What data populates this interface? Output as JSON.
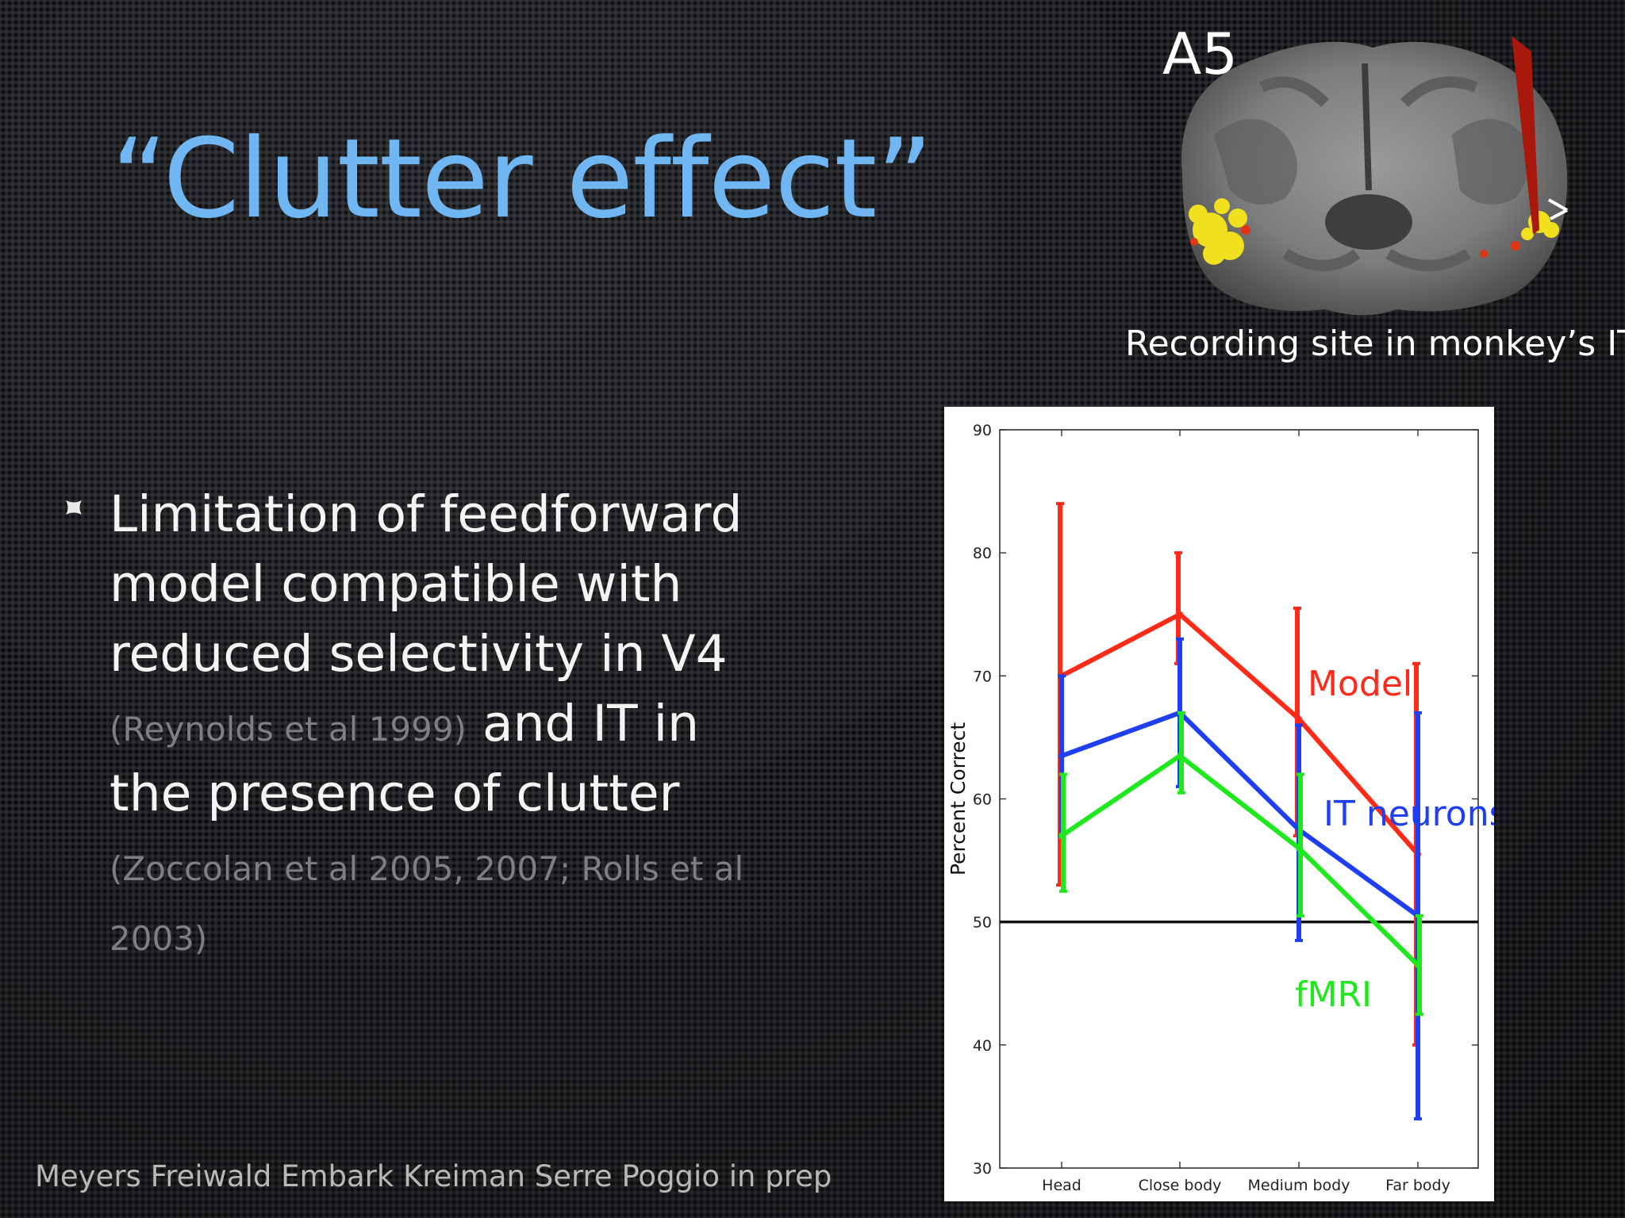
{
  "slide": {
    "title": "“Clutter effect”",
    "bullet": {
      "line1": "Limitation of feedforward model compatible with reduced selectivity in V4",
      "cite1": "(Reynolds et al 1999)",
      "line2": " and IT in the presence of clutter",
      "cite2": "(Zoccolan et al 2005, 2007; Rolls et al 2003)"
    },
    "footer": "Meyers Freiwald Embark Kreiman Serre Poggio in prep",
    "brain": {
      "label": "A5",
      "caption": "Recording site in monkey’s IT"
    },
    "colors": {
      "title": "#6fb6f2",
      "model": "#ff2a17",
      "it": "#1f3ff5",
      "fmri": "#1fe81f"
    }
  },
  "chart_data": {
    "type": "line",
    "categories": [
      "Head",
      "Close body",
      "Medium body",
      "Far body"
    ],
    "ylabel": "Percent Correct",
    "xlabel": "",
    "ylim": [
      30,
      90
    ],
    "yticks": [
      30,
      40,
      50,
      60,
      70,
      80,
      90
    ],
    "reference_line": 50,
    "series": [
      {
        "name": "Model",
        "color": "#ff2a17",
        "values": [
          70,
          75,
          66.5,
          55.5
        ],
        "err_low": [
          53,
          71,
          57,
          40
        ],
        "err_high": [
          84,
          80,
          75.5,
          71
        ]
      },
      {
        "name": "IT neurons",
        "color": "#1f3ff5",
        "values": [
          63.5,
          67,
          57.5,
          50.5
        ],
        "err_low": [
          57,
          61,
          48.5,
          34
        ],
        "err_high": [
          70,
          73,
          66,
          67
        ]
      },
      {
        "name": "fMRI",
        "color": "#1fe81f",
        "values": [
          57,
          63.5,
          56,
          46.5
        ],
        "err_low": [
          52.5,
          60.5,
          50.5,
          42.5
        ],
        "err_high": [
          62,
          67,
          62,
          50.5
        ]
      }
    ]
  }
}
